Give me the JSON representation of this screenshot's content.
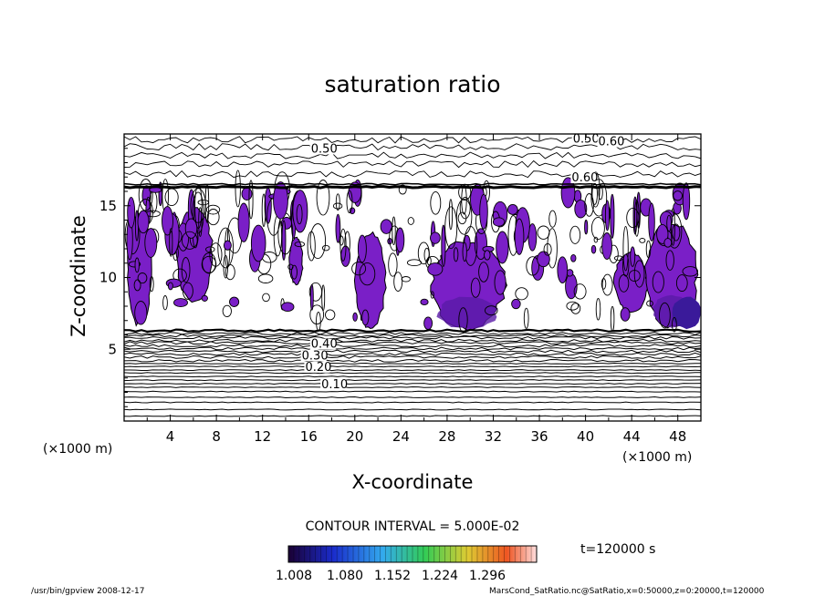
{
  "chart_data": {
    "type": "contour",
    "title": "saturation ratio",
    "xlabel": "X-coordinate",
    "ylabel": "Z-coordinate",
    "x_unit": "(×1000 m)",
    "z_unit": "(×1000 m)",
    "xlim": [
      0,
      50
    ],
    "ylim": [
      0,
      20
    ],
    "x_ticks": [
      4,
      8,
      12,
      16,
      20,
      24,
      28,
      32,
      36,
      40,
      44,
      48
    ],
    "y_ticks": [
      5,
      10,
      15
    ],
    "contour_interval_text": "CONTOUR INTERVAL = 5.000E-02",
    "contour_labels": [
      "0.10",
      "0.20",
      "0.30",
      "0.40",
      "0.50",
      "0.50",
      "0.60",
      "0.60"
    ],
    "shaded_min_ratio": 1.008,
    "colorbar_ticks": [
      "1.008",
      "1.080",
      "1.152",
      "1.224",
      "1.296"
    ],
    "time_label": "t=120000 s",
    "shaded_regions": [
      {
        "x": [
          0.3,
          2.4
        ],
        "z": [
          6.5,
          14.6
        ]
      },
      {
        "x": [
          4.5,
          7.7
        ],
        "z": [
          8.2,
          14.9
        ]
      },
      {
        "x": [
          14.3,
          15.5
        ],
        "z": [
          9.5,
          12.8
        ]
      },
      {
        "x": [
          20.0,
          22.7
        ],
        "z": [
          6.4,
          13.2
        ]
      },
      {
        "x": [
          26.5,
          33.0
        ],
        "z": [
          6.3,
          12.6
        ]
      },
      {
        "x": [
          42.5,
          45.4
        ],
        "z": [
          7.5,
          11.8
        ]
      },
      {
        "x": [
          45.2,
          49.7
        ],
        "z": [
          6.4,
          14.0
        ]
      }
    ],
    "tropopause_z": 16.3,
    "lower_boundary_z": 6.3
  },
  "footer": {
    "left": "/usr/bin/gpview  2008-12-17",
    "right": "MarsCond_SatRatio.nc@SatRatio,x=0:50000,z=0:20000,t=120000"
  },
  "colors": {
    "shade_main": "#7a1fc7",
    "shade_dark": "#5a1aa8",
    "shade_deep": "#3a1a9a",
    "line": "#000000"
  }
}
